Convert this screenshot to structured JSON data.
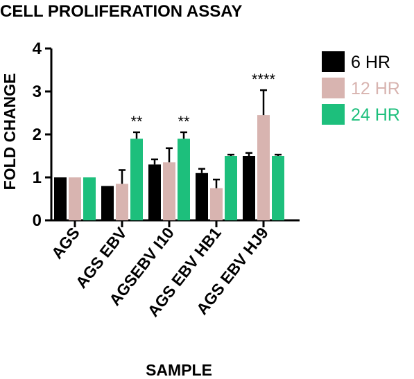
{
  "chart_data": {
    "type": "bar",
    "title": "CELL PROLIFERATION ASSAY",
    "xlabel": "SAMPLE",
    "ylabel": "FOLD CHANGE",
    "ylim": [
      0,
      4
    ],
    "yticks": [
      "0",
      "1",
      "2",
      "3",
      "4"
    ],
    "categories": [
      "AGS",
      "AGS EBV",
      "AGSEBV I10",
      "AGS EBV HB1",
      "AGS EBV HJ9"
    ],
    "series": [
      {
        "name": "6 HR",
        "color": "#000000",
        "values": [
          1.0,
          0.8,
          1.3,
          1.1,
          1.5
        ],
        "errors": [
          0,
          0,
          0.12,
          0.1,
          0.07
        ]
      },
      {
        "name": "12 HR",
        "color": "#d8b4b0",
        "values": [
          1.0,
          0.85,
          1.35,
          0.75,
          2.45
        ],
        "errors": [
          0,
          0.32,
          0.33,
          0.2,
          0.58
        ]
      },
      {
        "name": "24 HR",
        "color": "#1dbf7c",
        "values": [
          1.0,
          1.9,
          1.9,
          1.5,
          1.5
        ],
        "errors": [
          0,
          0.15,
          0.15,
          0.03,
          0.03
        ]
      }
    ],
    "annotations": [
      {
        "category": "AGS EBV",
        "series": "24 HR",
        "text": "**"
      },
      {
        "category": "AGSEBV I10",
        "series": "24 HR",
        "text": "**"
      },
      {
        "category": "AGS EBV HJ9",
        "series": "12 HR",
        "text": "****"
      }
    ],
    "legend": "right",
    "grid": false
  }
}
